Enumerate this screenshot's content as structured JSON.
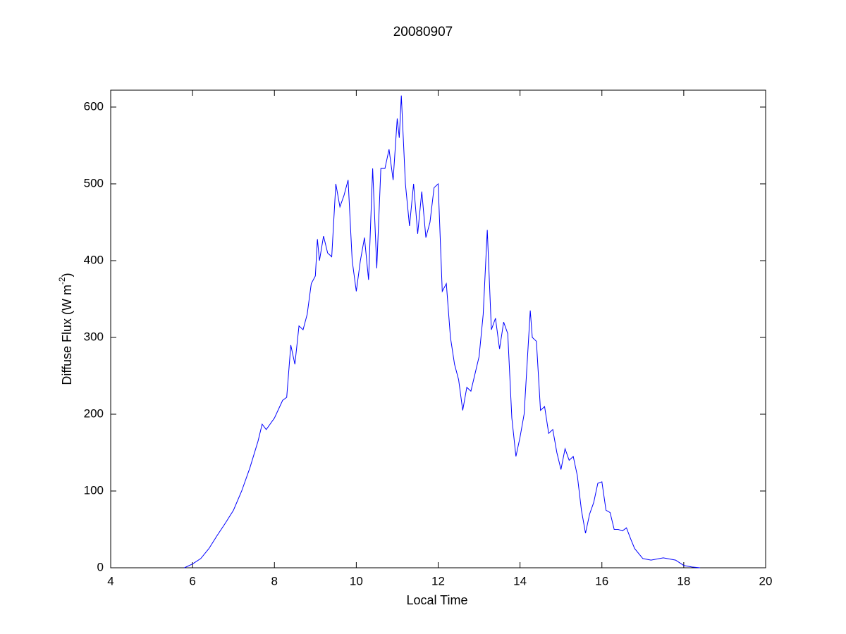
{
  "chart_data": {
    "type": "line",
    "title": "20080907",
    "x_label": "Local Time",
    "y_label": [
      "Diffuse Flux (W m",
      "-2",
      ")"
    ],
    "color": "#0000ff",
    "xlim": [
      4,
      20
    ],
    "ylim": [
      0,
      622
    ],
    "xticks": [
      4,
      6,
      8,
      10,
      12,
      14,
      16,
      18,
      20
    ],
    "yticks": [
      0,
      100,
      200,
      300,
      400,
      500,
      600
    ],
    "x": [
      5.8,
      6.0,
      6.2,
      6.4,
      6.6,
      6.8,
      7.0,
      7.2,
      7.4,
      7.6,
      7.7,
      7.8,
      8.0,
      8.2,
      8.3,
      8.4,
      8.5,
      8.6,
      8.7,
      8.8,
      8.9,
      9.0,
      9.05,
      9.1,
      9.2,
      9.3,
      9.4,
      9.5,
      9.6,
      9.7,
      9.8,
      9.9,
      10.0,
      10.1,
      10.2,
      10.3,
      10.4,
      10.5,
      10.6,
      10.7,
      10.8,
      10.9,
      11.0,
      11.05,
      11.1,
      11.2,
      11.3,
      11.4,
      11.5,
      11.6,
      11.7,
      11.8,
      11.9,
      12.0,
      12.1,
      12.2,
      12.3,
      12.4,
      12.5,
      12.6,
      12.7,
      12.8,
      13.0,
      13.1,
      13.2,
      13.3,
      13.4,
      13.5,
      13.6,
      13.7,
      13.8,
      13.9,
      14.0,
      14.1,
      14.2,
      14.25,
      14.3,
      14.4,
      14.5,
      14.6,
      14.7,
      14.8,
      14.9,
      15.0,
      15.1,
      15.2,
      15.3,
      15.4,
      15.5,
      15.6,
      15.7,
      15.8,
      15.9,
      16.0,
      16.1,
      16.2,
      16.3,
      16.4,
      16.5,
      16.6,
      16.7,
      16.8,
      17.0,
      17.2,
      17.5,
      17.8,
      18.0,
      18.2,
      18.4
    ],
    "values": [
      0,
      5,
      12,
      25,
      42,
      58,
      75,
      100,
      130,
      165,
      187,
      180,
      195,
      218,
      222,
      290,
      265,
      315,
      310,
      330,
      370,
      380,
      428,
      400,
      432,
      410,
      405,
      500,
      470,
      485,
      505,
      400,
      360,
      400,
      430,
      375,
      520,
      390,
      520,
      520,
      545,
      505,
      585,
      560,
      615,
      500,
      445,
      500,
      435,
      490,
      430,
      450,
      495,
      500,
      360,
      370,
      300,
      265,
      245,
      205,
      235,
      230,
      275,
      330,
      440,
      310,
      325,
      285,
      320,
      305,
      195,
      145,
      170,
      200,
      290,
      335,
      300,
      295,
      205,
      210,
      175,
      180,
      150,
      128,
      155,
      140,
      145,
      120,
      75,
      45,
      70,
      85,
      110,
      112,
      75,
      72,
      50,
      50,
      48,
      52,
      38,
      25,
      12,
      10,
      13,
      10,
      3,
      1,
      0
    ]
  }
}
